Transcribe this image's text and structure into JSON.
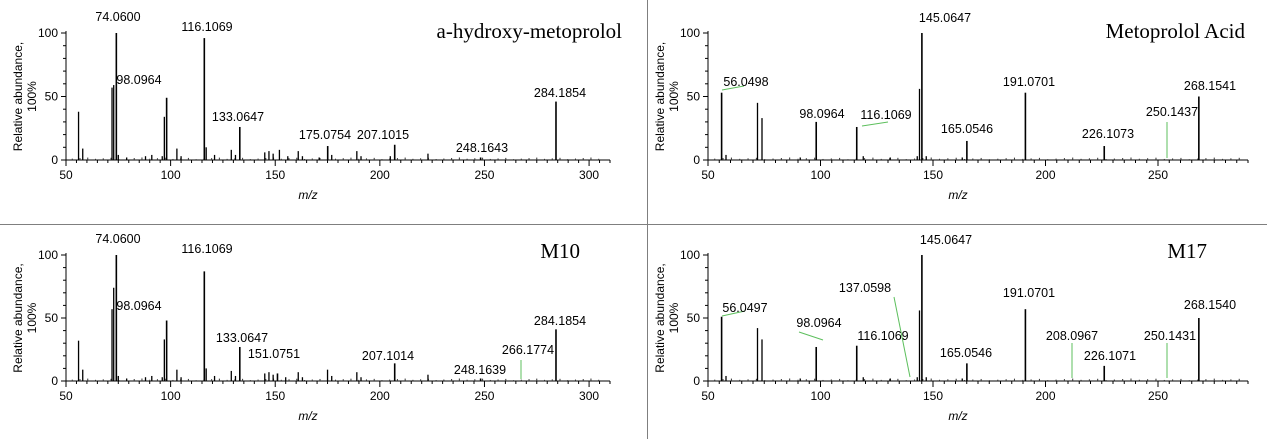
{
  "chart_data": [
    {
      "type": "bar",
      "title": "a-hydroxy-metoprolol",
      "xlabel": "m/z",
      "ylabel": [
        "Relative abundance,",
        "100%"
      ],
      "xlim": [
        50,
        310
      ],
      "ylim": [
        0,
        100
      ],
      "xticks": [
        50,
        100,
        150,
        200,
        250,
        300
      ],
      "yticks": [
        0,
        50,
        100
      ],
      "labeled_peaks": [
        {
          "mz": 74.06,
          "intensity": 100,
          "label": "74.0600"
        },
        {
          "mz": 116.1069,
          "intensity": 96,
          "label": "116.1069"
        },
        {
          "mz": 98.0964,
          "intensity": 49,
          "label": "98.0964"
        },
        {
          "mz": 133.0647,
          "intensity": 26,
          "label": "133.0647"
        },
        {
          "mz": 175.0754,
          "intensity": 11,
          "label": "175.0754"
        },
        {
          "mz": 207.1015,
          "intensity": 12,
          "label": "207.1015"
        },
        {
          "mz": 248.1643,
          "intensity": 2,
          "label": "248.1643"
        },
        {
          "mz": 284.1854,
          "intensity": 46,
          "label": "284.1854"
        }
      ],
      "peaks": [
        [
          56,
          38
        ],
        [
          58,
          9
        ],
        [
          72,
          57
        ],
        [
          72.8,
          59
        ],
        [
          75,
          4
        ],
        [
          79,
          2
        ],
        [
          88,
          3
        ],
        [
          91,
          4
        ],
        [
          96,
          3
        ],
        [
          97,
          34
        ],
        [
          103,
          9
        ],
        [
          105,
          3
        ],
        [
          117,
          10
        ],
        [
          121,
          4
        ],
        [
          129,
          8
        ],
        [
          131,
          4
        ],
        [
          145,
          6
        ],
        [
          147,
          7
        ],
        [
          149,
          5
        ],
        [
          152,
          8
        ],
        [
          156,
          3
        ],
        [
          161,
          7
        ],
        [
          163,
          3
        ],
        [
          171,
          2
        ],
        [
          177,
          4
        ],
        [
          189,
          7
        ],
        [
          191,
          3
        ],
        [
          205,
          3
        ],
        [
          223,
          5
        ]
      ]
    },
    {
      "type": "bar",
      "title": "Metoprolol Acid",
      "xlabel": "m/z",
      "ylabel": [
        "Relative abundance,",
        "100%"
      ],
      "xlim": [
        50,
        290
      ],
      "ylim": [
        0,
        100
      ],
      "xticks": [
        50,
        100,
        150,
        200,
        250
      ],
      "yticks": [
        0,
        50,
        100
      ],
      "labeled_peaks": [
        {
          "mz": 145.0647,
          "intensity": 100,
          "label": "145.0647"
        },
        {
          "mz": 56.0498,
          "intensity": 53,
          "label": "56.0498"
        },
        {
          "mz": 191.0701,
          "intensity": 53,
          "label": "191.0701"
        },
        {
          "mz": 268.1541,
          "intensity": 50,
          "label": "268.1541"
        },
        {
          "mz": 98.0964,
          "intensity": 30,
          "label": "98.0964"
        },
        {
          "mz": 116.1069,
          "intensity": 26,
          "label": "116.1069"
        },
        {
          "mz": 165.0546,
          "intensity": 15,
          "label": "165.0546"
        },
        {
          "mz": 226.1073,
          "intensity": 11,
          "label": "226.1073"
        },
        {
          "mz": 250.1437,
          "intensity": 0.5,
          "label": "250.1437"
        }
      ],
      "peaks": [
        [
          58,
          4
        ],
        [
          72,
          45
        ],
        [
          74,
          33
        ],
        [
          91,
          2
        ],
        [
          119,
          3
        ],
        [
          131,
          2
        ],
        [
          143,
          3
        ],
        [
          144,
          56
        ],
        [
          147,
          3
        ],
        [
          163,
          2
        ]
      ]
    },
    {
      "type": "bar",
      "title": "M10",
      "xlabel": "m/z",
      "ylabel": [
        "Relative abundance,",
        "100%"
      ],
      "xlim": [
        50,
        310
      ],
      "ylim": [
        0,
        100
      ],
      "xticks": [
        50,
        100,
        150,
        200,
        250,
        300
      ],
      "yticks": [
        0,
        50,
        100
      ],
      "labeled_peaks": [
        {
          "mz": 74.06,
          "intensity": 100,
          "label": "74.0600"
        },
        {
          "mz": 116.1069,
          "intensity": 87,
          "label": "116.1069"
        },
        {
          "mz": 98.0964,
          "intensity": 48,
          "label": "98.0964"
        },
        {
          "mz": 133.0647,
          "intensity": 27,
          "label": "133.0647"
        },
        {
          "mz": 151.0751,
          "intensity": 6,
          "label": "151.0751"
        },
        {
          "mz": 207.1014,
          "intensity": 14,
          "label": "207.1014"
        },
        {
          "mz": 248.1639,
          "intensity": 2,
          "label": "248.1639"
        },
        {
          "mz": 266.1774,
          "intensity": 0.5,
          "label": "266.1774"
        },
        {
          "mz": 284.1854,
          "intensity": 41,
          "label": "284.1854"
        }
      ],
      "peaks": [
        [
          56,
          32
        ],
        [
          58,
          9
        ],
        [
          72,
          57
        ],
        [
          72.8,
          74
        ],
        [
          75,
          4
        ],
        [
          79,
          2
        ],
        [
          88,
          3
        ],
        [
          91,
          4
        ],
        [
          96,
          3
        ],
        [
          97,
          33
        ],
        [
          103,
          9
        ],
        [
          105,
          3
        ],
        [
          117,
          10
        ],
        [
          121,
          4
        ],
        [
          129,
          8
        ],
        [
          131,
          4
        ],
        [
          145,
          6
        ],
        [
          147,
          7
        ],
        [
          149,
          5
        ],
        [
          155,
          3
        ],
        [
          161,
          7
        ],
        [
          163,
          3
        ],
        [
          175,
          9
        ],
        [
          177,
          4
        ],
        [
          189,
          7
        ],
        [
          191,
          3
        ],
        [
          223,
          5
        ]
      ]
    },
    {
      "type": "bar",
      "title": "M17",
      "xlabel": "m/z",
      "ylabel": [
        "Relative abundance,",
        "100%"
      ],
      "xlim": [
        50,
        290
      ],
      "ylim": [
        0,
        100
      ],
      "xticks": [
        50,
        100,
        150,
        200,
        250
      ],
      "yticks": [
        0,
        50,
        100
      ],
      "labeled_peaks": [
        {
          "mz": 145.0647,
          "intensity": 100,
          "label": "145.0647"
        },
        {
          "mz": 137.0598,
          "intensity": 0.5,
          "label": "137.0598"
        },
        {
          "mz": 191.0701,
          "intensity": 57,
          "label": "191.0701"
        },
        {
          "mz": 56.0497,
          "intensity": 51,
          "label": "56.0497"
        },
        {
          "mz": 268.154,
          "intensity": 50,
          "label": "268.1540"
        },
        {
          "mz": 98.0964,
          "intensity": 27,
          "label": "98.0964"
        },
        {
          "mz": 116.1069,
          "intensity": 28,
          "label": "116.1069"
        },
        {
          "mz": 165.0546,
          "intensity": 14,
          "label": "165.0546"
        },
        {
          "mz": 208.0967,
          "intensity": 0.5,
          "label": "208.0967"
        },
        {
          "mz": 226.1071,
          "intensity": 12,
          "label": "226.1071"
        },
        {
          "mz": 250.1431,
          "intensity": 0.5,
          "label": "250.1431"
        }
      ],
      "peaks": [
        [
          58,
          4
        ],
        [
          72,
          42
        ],
        [
          74,
          33
        ],
        [
          91,
          2
        ],
        [
          119,
          3
        ],
        [
          131,
          2
        ],
        [
          143,
          3
        ],
        [
          144,
          56
        ],
        [
          147,
          3
        ],
        [
          163,
          2
        ]
      ]
    }
  ]
}
